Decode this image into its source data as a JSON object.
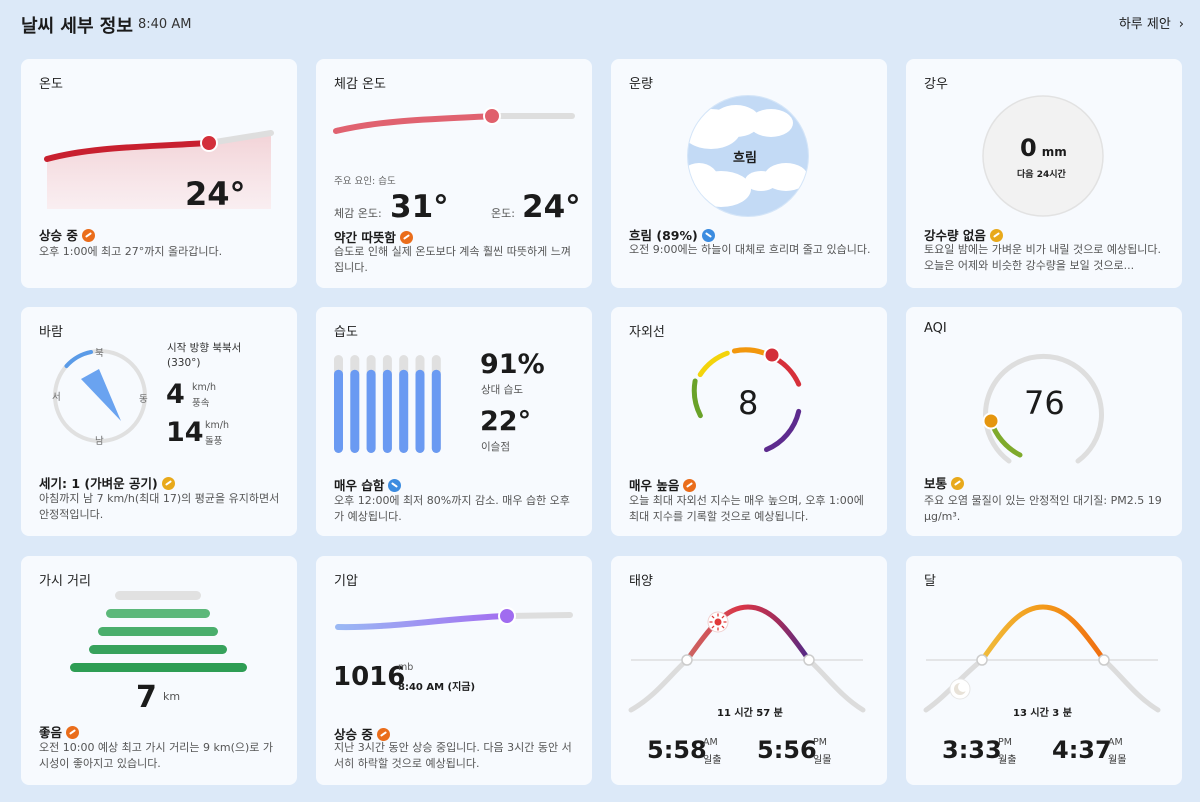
{
  "header": {
    "title": "날씨 세부 정보",
    "time": "8:40 AM",
    "forecast_link": "하루 제안"
  },
  "colors": {
    "accent_orange": "#ea6d1b",
    "accent_blue": "#3c8ce0",
    "accent_yellow": "#e8a91b",
    "marker_red": "#d32f3a",
    "bar_blue": "#6a9af2",
    "green": "#2e9d54"
  },
  "temperature": {
    "title": "온도",
    "value": "24°",
    "status": "상승 중",
    "desc": "오후 1:00에 최고 27°까지 올라갑니다."
  },
  "feels_like": {
    "title": "체감 온도",
    "factor": "주요 요인: 습도",
    "feels_label": "체감 온도:",
    "feels_value": "31°",
    "temp_label": "온도:",
    "temp_value": "24°",
    "status": "약간 따뜻함",
    "desc": "습도로 인해 실제 온도보다 계속 훨씬 따뜻하게 느껴집니다."
  },
  "cloud": {
    "title": "운량",
    "center": "흐림",
    "status": "흐림 (89%)",
    "desc": "오전 9:00에는 하늘이 대체로 흐리며 줄고 있습니다."
  },
  "rain": {
    "title": "강우",
    "amount": "0",
    "unit": "mm",
    "period": "다음 24시간",
    "status": "강수량 없음",
    "desc": "토요일 밤에는 가벼운 비가 내릴 것으로 예상됩니다. 오늘은 어제와 비슷한 강수량을 보일 것으로..."
  },
  "wind": {
    "title": "바람",
    "north": "북",
    "south": "남",
    "west": "서",
    "east": "동",
    "direction": "시작 방향 북북서 (330°)",
    "speed": "4",
    "speed_unit": "km/h",
    "speed_label": "풍속",
    "gust": "14",
    "gust_unit": "km/h",
    "gust_label": "돌풍",
    "status": "세기: 1 (가벼운 공기)",
    "desc": "아침까지 남 7 km/h(최대 17)의 평균을 유지하면서 안정적입니다."
  },
  "humidity": {
    "title": "습도",
    "value": "91%",
    "value_label": "상대 습도",
    "dew": "22°",
    "dew_label": "이슬점",
    "status": "매우 습함",
    "desc": "오후 12:00에 최저 80%까지 감소. 매우 습한 오후가 예상됩니다.",
    "bars": [
      0.85,
      0.85,
      0.85,
      0.85,
      0.85,
      0.85,
      0.85
    ]
  },
  "uv": {
    "title": "자외선",
    "value": "8",
    "status": "매우 높음",
    "desc": "오늘 최대 자외선 지수는 매우 높으며, 오후 1:00에 최대 지수를 기록할 것으로 예상됩니다."
  },
  "aqi": {
    "title": "AQI",
    "value": "76",
    "status": "보통",
    "desc": "주요 오염 물질이 있는 안정적인 대기질: PM2.5 19 µg/m³."
  },
  "visibility": {
    "title": "가시 거리",
    "value": "7",
    "unit": "km",
    "status": "좋음",
    "desc": "오전 10:00 예상 최고 가시 거리는 9 km(으)로 가시성이 좋아지고 있습니다."
  },
  "pressure": {
    "title": "기압",
    "value": "1016",
    "unit": "mb",
    "time": "8:40 AM (지금)",
    "status": "상승 중",
    "desc": "지난 3시간 동안 상승 중입니다. 다음 3시간 동안 서서히 하락할 것으로 예상됩니다."
  },
  "sun": {
    "title": "태양",
    "duration": "11 시간 57 분",
    "rise_time": "5:58",
    "rise_ampm": "AM",
    "rise_label": "일출",
    "set_time": "5:56",
    "set_ampm": "PM",
    "set_label": "일몰"
  },
  "moon": {
    "title": "달",
    "duration": "13 시간 3 분",
    "rise_time": "3:33",
    "rise_ampm": "PM",
    "rise_label": "월출",
    "set_time": "4:37",
    "set_ampm": "AM",
    "set_label": "월몰"
  }
}
